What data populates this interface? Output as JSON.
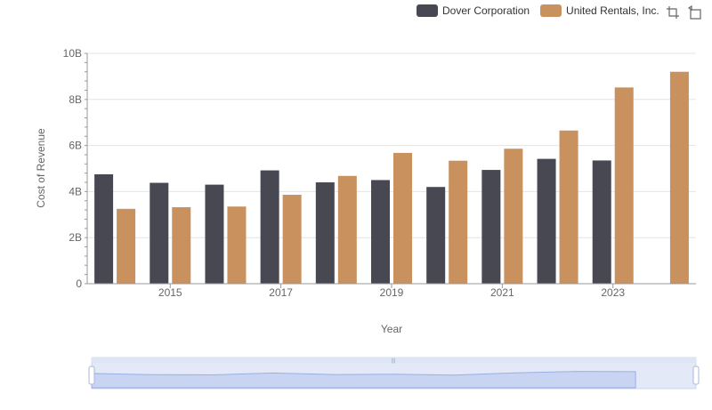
{
  "chart_data": {
    "type": "bar",
    "title": "",
    "xlabel": "Year",
    "ylabel": "Cost of Revenue",
    "categories": [
      "2014",
      "2015",
      "2016",
      "2017",
      "2018",
      "2019",
      "2020",
      "2021",
      "2022",
      "2023",
      "2024"
    ],
    "x_tick_labels": [
      "2015",
      "2017",
      "2019",
      "2021",
      "2023"
    ],
    "y_ticks": [
      0,
      2000000000,
      4000000000,
      6000000000,
      8000000000,
      10000000000
    ],
    "y_tick_labels": [
      "0",
      "2B",
      "4B",
      "6B",
      "8B",
      "10B"
    ],
    "ylim": [
      0,
      10000000000
    ],
    "grid": true,
    "legend_position": "top-right",
    "series": [
      {
        "name": "Dover Corporation",
        "color": "#484853",
        "values": [
          4750000000,
          4380000000,
          4300000000,
          4920000000,
          4400000000,
          4500000000,
          4200000000,
          4940000000,
          5420000000,
          5350000000,
          null
        ]
      },
      {
        "name": "United Rentals, Inc.",
        "color": "#c8915e",
        "values": [
          3250000000,
          3320000000,
          3350000000,
          3860000000,
          4680000000,
          5680000000,
          5340000000,
          5860000000,
          6650000000,
          8520000000,
          9200000000
        ]
      }
    ]
  },
  "toolbar": {
    "zoom_icon": "zoom-icon",
    "restore_icon": "restore-icon"
  }
}
